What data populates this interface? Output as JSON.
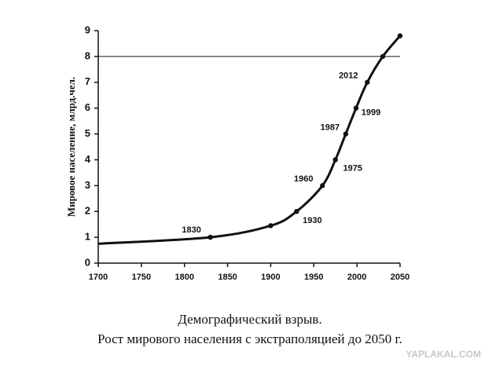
{
  "chart_data": {
    "type": "line",
    "y_label": "Мировое население, млрд.чел.",
    "caption": [
      "Демографический взрыв.",
      "Рост мирового населения с экстраполяцией до 2050 г."
    ],
    "watermark": "YAPLAKAL.COM",
    "x": [
      1700,
      1830,
      1900,
      1930,
      1960,
      1975,
      1987,
      1999,
      2012,
      2030,
      2050
    ],
    "values": [
      0.75,
      1.0,
      1.45,
      2.0,
      3.0,
      4.0,
      5.0,
      6.0,
      7.0,
      8.0,
      8.8
    ],
    "point_labels": [
      null,
      "1830",
      null,
      "1930",
      "1960",
      "1975",
      "1987",
      "1999",
      "2012",
      null,
      null
    ],
    "color": "#111111",
    "reference_line": 8,
    "xlim": [
      1700,
      2050
    ],
    "xticks": [
      1700,
      1750,
      1800,
      1850,
      1900,
      1950,
      2000,
      2050
    ],
    "ylim": [
      0,
      9
    ],
    "yticks": [
      0,
      1,
      2,
      3,
      4,
      5,
      6,
      7,
      8,
      9
    ]
  }
}
